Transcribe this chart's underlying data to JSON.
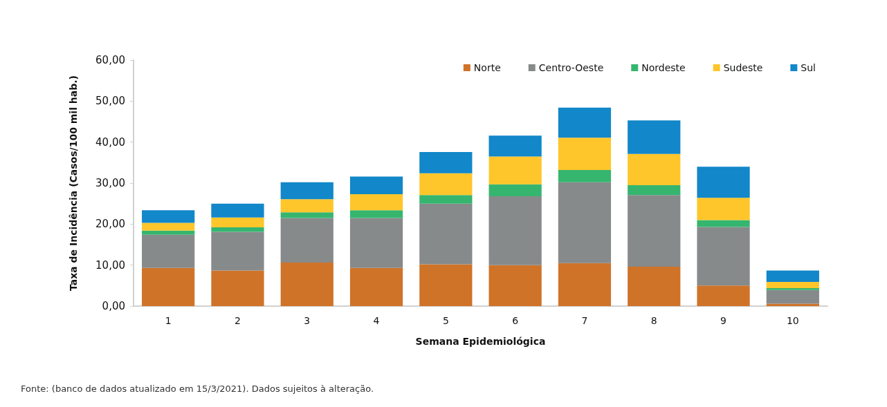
{
  "chart_data": {
    "type": "bar",
    "stacked": true,
    "xlabel": "Semana Epidemiológica",
    "ylabel": "Taxa de Incidência (Casos/100 mil hab.)",
    "categories": [
      "1",
      "2",
      "3",
      "4",
      "5",
      "6",
      "7",
      "8",
      "9",
      "10"
    ],
    "series": [
      {
        "name": "Norte",
        "color": "#cf7329",
        "values": [
          9.3,
          8.7,
          10.6,
          9.3,
          10.2,
          10.0,
          10.5,
          9.6,
          5.0,
          0.6
        ]
      },
      {
        "name": "Centro-Oeste",
        "color": "#878a8a",
        "values": [
          8.1,
          9.4,
          10.9,
          12.2,
          14.8,
          16.8,
          19.7,
          17.5,
          14.3,
          3.3
        ]
      },
      {
        "name": "Nordeste",
        "color": "#36b56f",
        "values": [
          1.0,
          1.1,
          1.4,
          1.9,
          2.1,
          2.9,
          3.0,
          2.4,
          1.7,
          0.5
        ]
      },
      {
        "name": "Sudeste",
        "color": "#fec62b",
        "values": [
          1.9,
          2.4,
          3.2,
          3.9,
          5.3,
          6.8,
          7.9,
          7.6,
          5.4,
          1.5
        ]
      },
      {
        "name": "Sul",
        "color": "#1287c9",
        "values": [
          3.1,
          3.4,
          4.1,
          4.3,
          5.2,
          5.1,
          7.3,
          8.2,
          7.6,
          2.8
        ]
      }
    ],
    "ylim": [
      0,
      60
    ],
    "yticks": [
      {
        "value": 0,
        "label": "0,00"
      },
      {
        "value": 10,
        "label": "10,00"
      },
      {
        "value": 20,
        "label": "20,00"
      },
      {
        "value": 30,
        "label": "30,00"
      },
      {
        "value": 40,
        "label": "40,00"
      },
      {
        "value": 50,
        "label": "50,00"
      },
      {
        "value": 60,
        "label": "60,00"
      }
    ],
    "grid": false,
    "legend": "top right",
    "annotations": [
      "Fonte: (banco de dados atualizado em 15/3/2021). Dados sujeitos à alteração."
    ]
  }
}
